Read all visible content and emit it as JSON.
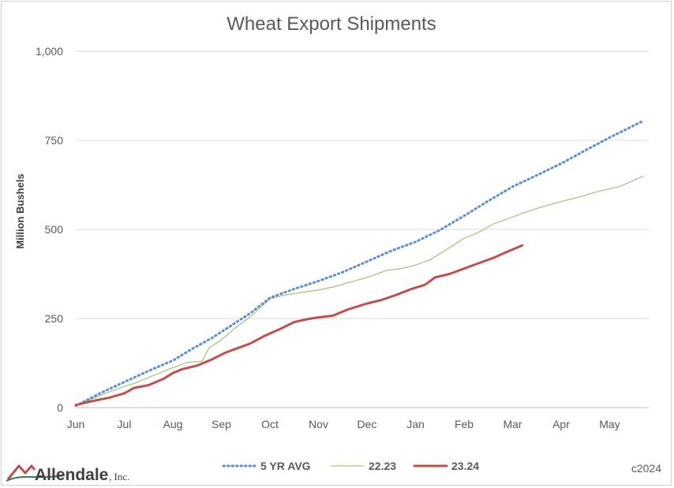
{
  "chart_data": {
    "type": "line",
    "title": "Wheat Export Shipments",
    "xlabel": "",
    "ylabel": "Million Bushels",
    "x_tick_labels": [
      "Jun",
      "Jul",
      "Aug",
      "Sep",
      "Oct",
      "Nov",
      "Dec",
      "Jan",
      "Feb",
      "Mar",
      "Apr",
      "May"
    ],
    "y_ticks": [
      0,
      250,
      500,
      750,
      1000
    ],
    "y_tick_labels": [
      "0",
      "250",
      "500",
      "750",
      "1,000"
    ],
    "ylim": [
      0,
      1000
    ],
    "xlim": [
      0,
      11.7
    ],
    "grid": true,
    "legend_position": "bottom",
    "series": [
      {
        "name": "5 YR AVG",
        "color": "#5b8fcf",
        "style": "dotted",
        "points": [
          [
            0,
            5
          ],
          [
            0.5,
            40
          ],
          [
            1,
            72
          ],
          [
            1.5,
            103
          ],
          [
            2,
            132
          ],
          [
            2.4,
            165
          ],
          [
            2.8,
            195
          ],
          [
            3.2,
            230
          ],
          [
            3.6,
            265
          ],
          [
            4,
            308
          ],
          [
            4.5,
            333
          ],
          [
            5,
            355
          ],
          [
            5.5,
            380
          ],
          [
            6,
            410
          ],
          [
            6.5,
            440
          ],
          [
            7,
            465
          ],
          [
            7.5,
            498
          ],
          [
            8,
            538
          ],
          [
            8.5,
            580
          ],
          [
            9,
            620
          ],
          [
            9.5,
            652
          ],
          [
            10,
            685
          ],
          [
            10.5,
            722
          ],
          [
            11,
            758
          ],
          [
            11.7,
            805
          ]
        ]
      },
      {
        "name": "22.23",
        "color": "#a9c47f",
        "style": "solid",
        "points": [
          [
            0,
            5
          ],
          [
            0.4,
            28
          ],
          [
            0.8,
            50
          ],
          [
            1.2,
            68
          ],
          [
            1.6,
            90
          ],
          [
            2,
            112
          ],
          [
            2.3,
            127
          ],
          [
            2.6,
            130
          ],
          [
            2.75,
            168
          ],
          [
            3,
            190
          ],
          [
            3.3,
            225
          ],
          [
            3.6,
            255
          ],
          [
            4,
            305
          ],
          [
            4.3,
            316
          ],
          [
            4.6,
            322
          ],
          [
            5,
            330
          ],
          [
            5.3,
            338
          ],
          [
            5.6,
            350
          ],
          [
            6,
            365
          ],
          [
            6.4,
            385
          ],
          [
            6.7,
            390
          ],
          [
            7,
            400
          ],
          [
            7.3,
            415
          ],
          [
            7.6,
            440
          ],
          [
            8,
            475
          ],
          [
            8.3,
            492
          ],
          [
            8.6,
            515
          ],
          [
            9,
            535
          ],
          [
            9.3,
            550
          ],
          [
            9.6,
            563
          ],
          [
            10,
            578
          ],
          [
            10.4,
            592
          ],
          [
            10.8,
            608
          ],
          [
            11.2,
            620
          ],
          [
            11.7,
            650
          ]
        ]
      },
      {
        "name": "23.24",
        "color": "#c0504d",
        "style": "solid",
        "points": [
          [
            0,
            7
          ],
          [
            0.3,
            17
          ],
          [
            0.7,
            28
          ],
          [
            1,
            40
          ],
          [
            1.2,
            55
          ],
          [
            1.5,
            63
          ],
          [
            1.8,
            80
          ],
          [
            2,
            97
          ],
          [
            2.2,
            108
          ],
          [
            2.5,
            118
          ],
          [
            2.8,
            135
          ],
          [
            3.1,
            155
          ],
          [
            3.4,
            170
          ],
          [
            3.6,
            180
          ],
          [
            3.9,
            202
          ],
          [
            4.2,
            220
          ],
          [
            4.5,
            240
          ],
          [
            4.8,
            249
          ],
          [
            5,
            253
          ],
          [
            5.3,
            258
          ],
          [
            5.6,
            275
          ],
          [
            6,
            292
          ],
          [
            6.3,
            302
          ],
          [
            6.6,
            316
          ],
          [
            6.9,
            332
          ],
          [
            7.2,
            345
          ],
          [
            7.4,
            365
          ],
          [
            7.7,
            375
          ],
          [
            8,
            390
          ],
          [
            8.3,
            405
          ],
          [
            8.6,
            420
          ],
          [
            8.9,
            438
          ],
          [
            9.2,
            455
          ]
        ]
      }
    ]
  },
  "footer": {
    "copyright": "c2024",
    "logo_text": "Allendale",
    "logo_suffix": ", Inc."
  }
}
